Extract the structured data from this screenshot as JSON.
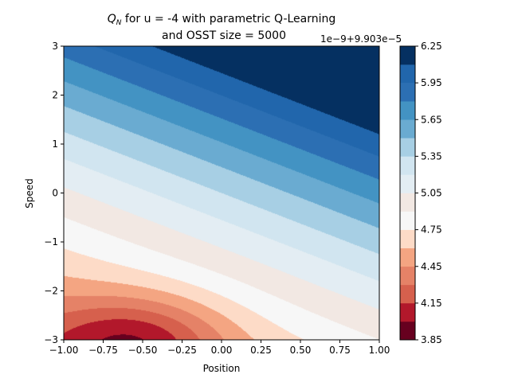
{
  "chart_data": {
    "type": "contourf",
    "title_line1_prefix": "Q",
    "title_line1_sub": "N",
    "title_line1_rest": " for u = -4 with parametric Q-Learning",
    "title_line2": "and OSST size = 5000",
    "xlabel": "Position",
    "ylabel": "Speed",
    "xlim": [
      -1.0,
      1.0
    ],
    "ylim": [
      -3,
      3
    ],
    "x_ticks": [
      -1.0,
      -0.75,
      -0.5,
      -0.25,
      0.0,
      0.25,
      0.5,
      0.75,
      1.0
    ],
    "x_tick_labels": [
      "−1.00",
      "−0.75",
      "−0.50",
      "−0.25",
      "0.00",
      "0.25",
      "0.50",
      "0.75",
      "1.00"
    ],
    "y_ticks": [
      -3,
      -2,
      -1,
      0,
      1,
      2,
      3
    ],
    "y_tick_labels": [
      "−3",
      "−2",
      "−1",
      "0",
      "1",
      "2",
      "3"
    ],
    "colorbar": {
      "offset_text": "1e−9+9.903e−5",
      "levels": [
        3.85,
        4.0,
        4.15,
        4.3,
        4.45,
        4.6,
        4.75,
        4.9,
        5.05,
        5.2,
        5.35,
        5.5,
        5.65,
        5.8,
        5.95,
        6.1,
        6.25
      ],
      "tick_values": [
        3.85,
        4.15,
        4.45,
        4.75,
        5.05,
        5.35,
        5.65,
        5.95,
        6.25
      ],
      "tick_labels": [
        "3.85",
        "4.15",
        "4.45",
        "4.75",
        "5.05",
        "5.35",
        "5.65",
        "5.95",
        "6.25"
      ],
      "colors": [
        "#67001f",
        "#b2182b",
        "#d6604d",
        "#e58267",
        "#f4a582",
        "#fddbc7",
        "#f7f7f7",
        "#f2e8e3",
        "#e3edf3",
        "#d1e5f0",
        "#a7cfe4",
        "#6aabd1",
        "#4393c3",
        "#2c6fb3",
        "#2166ac",
        "#053061"
      ]
    },
    "colormap": "RdBu",
    "grid": false
  }
}
